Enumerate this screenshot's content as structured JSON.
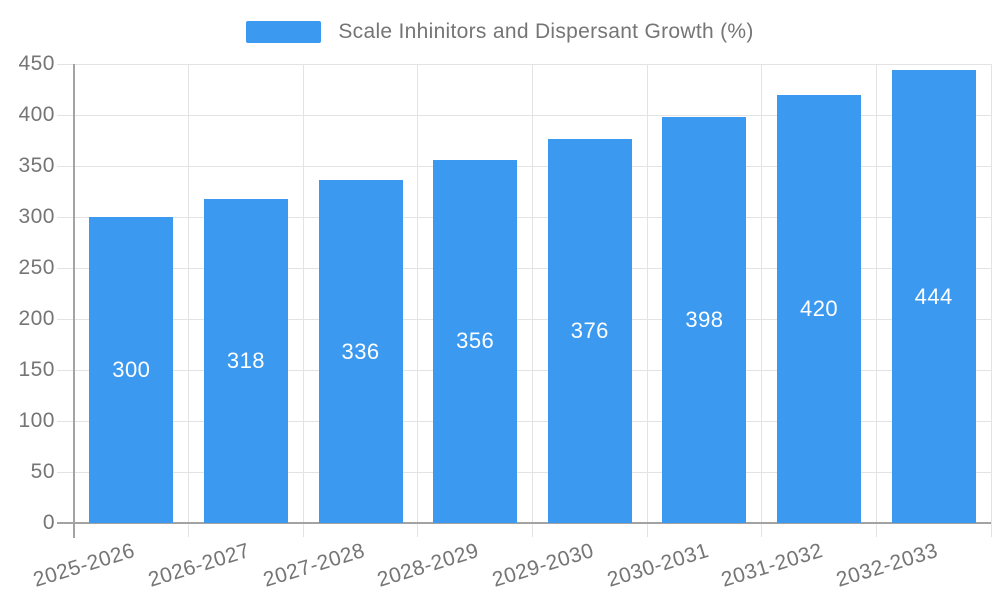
{
  "chart_data": {
    "type": "bar",
    "title": "Scale Inhinitors and Dispersant Growth (%)",
    "categories": [
      "2025-2026",
      "2026-2027",
      "2027-2028",
      "2028-2029",
      "2029-2030",
      "2030-2031",
      "2031-2032",
      "2032-2033"
    ],
    "values": [
      300,
      318,
      336,
      356,
      376,
      398,
      420,
      444
    ],
    "xlabel": "",
    "ylabel": "",
    "ylim": [
      0,
      450
    ],
    "ytick_step": 50,
    "yticks": [
      0,
      50,
      100,
      150,
      200,
      250,
      300,
      350,
      400,
      450
    ],
    "grid": true,
    "legend_position": "top-center",
    "value_label_position": "inside-center",
    "x_label_rotation_deg": -17,
    "colors": {
      "bar": "#3C99F0",
      "value_label": "#FFFFFF",
      "axis_line": "#A3A3A3",
      "gridline": "#E3E3E3",
      "text": "#757575",
      "background": "#FFFFFF"
    }
  }
}
